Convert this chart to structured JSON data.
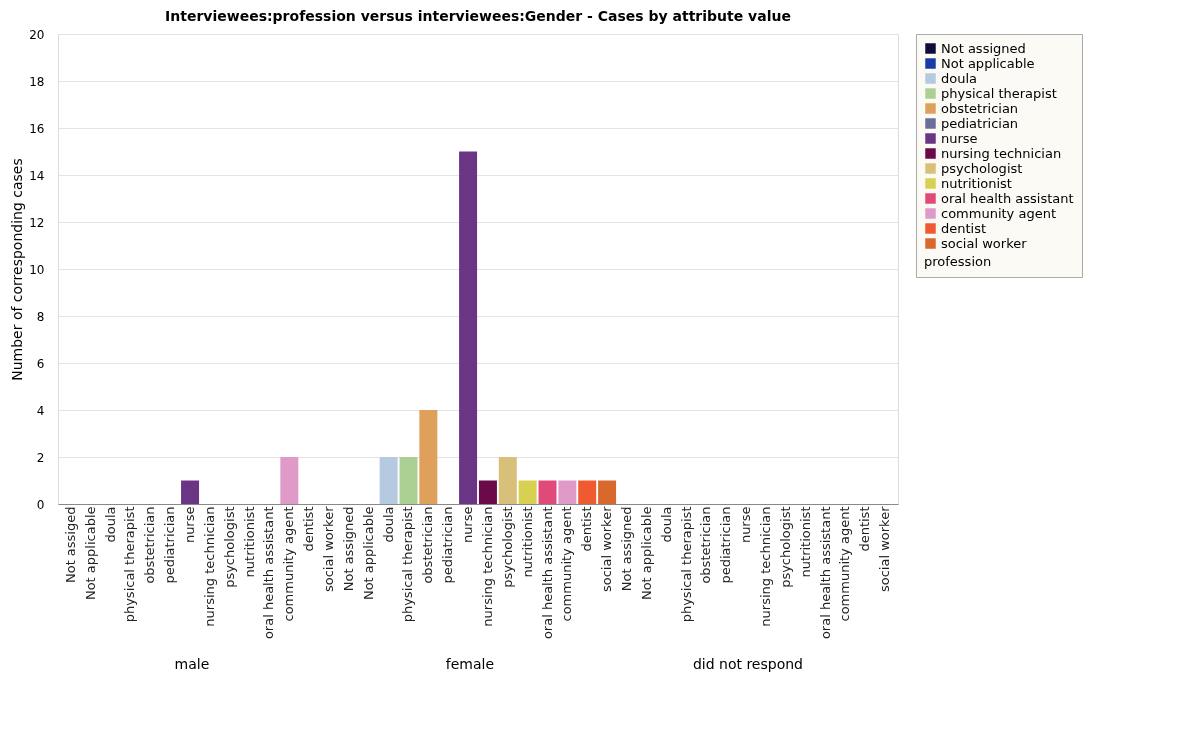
{
  "chart_data": {
    "type": "bar",
    "title": "Interviewees:profession versus interviewees:Gender - Cases by attribute value",
    "ylabel": "Number of corresponding cases",
    "legend_title": "profession",
    "legend": "right",
    "grid": "y",
    "ylim": [
      0,
      20
    ],
    "yticks": [
      0,
      2,
      4,
      6,
      8,
      10,
      12,
      14,
      16,
      18,
      20
    ],
    "annotations": [
      "male",
      "female",
      "did not respond"
    ],
    "categories": [
      "Not assiged",
      "Not applicable",
      "doula",
      "physical therapist",
      "obstetrician",
      "pediatrician",
      "nurse",
      "nursing technician",
      "psychologist",
      "nutritionist",
      "oral health assistant",
      "community agent",
      "dentist",
      "social worker",
      "Not assigned",
      "Not applicable",
      "doula",
      "physical therapist",
      "obstetrician",
      "pediatrician",
      "nurse",
      "nursing technician",
      "psychologist",
      "nutritionist",
      "oral health assistant",
      "community agent",
      "dentist",
      "social worker",
      "Not assigned",
      "Not applicable",
      "doula",
      "physical therapist",
      "obstetrician",
      "pediatrician",
      "nurse",
      "nursing technician",
      "psychologist",
      "nutritionist",
      "oral health assistant",
      "community agent",
      "dentist",
      "social worker"
    ],
    "series": [
      {
        "name": "Not assigned",
        "color": "#0d0c3a",
        "values": [
          0,
          null,
          null,
          null,
          null,
          null,
          null,
          null,
          null,
          null,
          null,
          null,
          null,
          null,
          0,
          null,
          null,
          null,
          null,
          null,
          null,
          null,
          null,
          null,
          null,
          null,
          null,
          null,
          0,
          null,
          null,
          null,
          null,
          null,
          null,
          null,
          null,
          null,
          null,
          null,
          null,
          null
        ]
      },
      {
        "name": "Not applicable",
        "color": "#1a3aa8",
        "values": [
          null,
          0,
          null,
          null,
          null,
          null,
          null,
          null,
          null,
          null,
          null,
          null,
          null,
          null,
          null,
          0,
          null,
          null,
          null,
          null,
          null,
          null,
          null,
          null,
          null,
          null,
          null,
          null,
          null,
          0,
          null,
          null,
          null,
          null,
          null,
          null,
          null,
          null,
          null,
          null,
          null,
          null
        ]
      },
      {
        "name": "doula",
        "color": "#b5c9e0",
        "values": [
          null,
          null,
          0,
          null,
          null,
          null,
          null,
          null,
          null,
          null,
          null,
          null,
          null,
          null,
          null,
          null,
          2,
          null,
          null,
          null,
          null,
          null,
          null,
          null,
          null,
          null,
          null,
          null,
          null,
          null,
          0,
          null,
          null,
          null,
          null,
          null,
          null,
          null,
          null,
          null,
          null,
          null
        ]
      },
      {
        "name": "physical therapist",
        "color": "#acd094",
        "values": [
          null,
          null,
          null,
          0,
          null,
          null,
          null,
          null,
          null,
          null,
          null,
          null,
          null,
          null,
          null,
          null,
          null,
          2,
          null,
          null,
          null,
          null,
          null,
          null,
          null,
          null,
          null,
          null,
          null,
          null,
          null,
          0,
          null,
          null,
          null,
          null,
          null,
          null,
          null,
          null,
          null,
          null
        ]
      },
      {
        "name": "obstetrician",
        "color": "#dea05a",
        "values": [
          null,
          null,
          null,
          null,
          0,
          null,
          null,
          null,
          null,
          null,
          null,
          null,
          null,
          null,
          null,
          null,
          null,
          null,
          4,
          null,
          null,
          null,
          null,
          null,
          null,
          null,
          null,
          null,
          null,
          null,
          null,
          null,
          0,
          null,
          null,
          null,
          null,
          null,
          null,
          null,
          null,
          null
        ]
      },
      {
        "name": "pediatrician",
        "color": "#6a6e98",
        "values": [
          null,
          null,
          null,
          null,
          null,
          0,
          null,
          null,
          null,
          null,
          null,
          null,
          null,
          null,
          null,
          null,
          null,
          null,
          null,
          0,
          null,
          null,
          null,
          null,
          null,
          null,
          null,
          null,
          null,
          null,
          null,
          null,
          null,
          0,
          null,
          null,
          null,
          null,
          null,
          null,
          null,
          null
        ]
      },
      {
        "name": "nurse",
        "color": "#6a3585",
        "values": [
          null,
          null,
          null,
          null,
          null,
          null,
          1,
          null,
          null,
          null,
          null,
          null,
          null,
          null,
          null,
          null,
          null,
          null,
          null,
          null,
          15,
          null,
          null,
          null,
          null,
          null,
          null,
          null,
          null,
          null,
          null,
          null,
          null,
          null,
          0,
          null,
          null,
          null,
          null,
          null,
          null,
          null
        ]
      },
      {
        "name": "nursing technician",
        "color": "#6a0a48",
        "values": [
          null,
          null,
          null,
          null,
          null,
          null,
          null,
          0,
          null,
          null,
          null,
          null,
          null,
          null,
          null,
          null,
          null,
          null,
          null,
          null,
          null,
          1,
          null,
          null,
          null,
          null,
          null,
          null,
          null,
          null,
          null,
          null,
          null,
          null,
          null,
          0,
          null,
          null,
          null,
          null,
          null,
          null
        ]
      },
      {
        "name": "psychologist",
        "color": "#d8c07a",
        "values": [
          null,
          null,
          null,
          null,
          null,
          null,
          null,
          null,
          0,
          null,
          null,
          null,
          null,
          null,
          null,
          null,
          null,
          null,
          null,
          null,
          null,
          null,
          2,
          null,
          null,
          null,
          null,
          null,
          null,
          null,
          null,
          null,
          null,
          null,
          null,
          null,
          0,
          null,
          null,
          null,
          null,
          null
        ]
      },
      {
        "name": "nutritionist",
        "color": "#d8d050",
        "values": [
          null,
          null,
          null,
          null,
          null,
          null,
          null,
          null,
          null,
          0,
          null,
          null,
          null,
          null,
          null,
          null,
          null,
          null,
          null,
          null,
          null,
          null,
          null,
          1,
          null,
          null,
          null,
          null,
          null,
          null,
          null,
          null,
          null,
          null,
          null,
          null,
          null,
          0,
          null,
          null,
          null,
          null
        ]
      },
      {
        "name": "oral health assistant",
        "color": "#e04a78",
        "values": [
          null,
          null,
          null,
          null,
          null,
          null,
          null,
          null,
          null,
          null,
          0,
          null,
          null,
          null,
          null,
          null,
          null,
          null,
          null,
          null,
          null,
          null,
          null,
          null,
          1,
          null,
          null,
          null,
          null,
          null,
          null,
          null,
          null,
          null,
          null,
          null,
          null,
          null,
          0,
          null,
          null,
          null
        ]
      },
      {
        "name": "community agent",
        "color": "#e09ac8",
        "values": [
          null,
          null,
          null,
          null,
          null,
          null,
          null,
          null,
          null,
          null,
          null,
          2,
          null,
          null,
          null,
          null,
          null,
          null,
          null,
          null,
          null,
          null,
          null,
          null,
          null,
          1,
          null,
          null,
          null,
          null,
          null,
          null,
          null,
          null,
          null,
          null,
          null,
          null,
          null,
          0,
          null,
          null
        ]
      },
      {
        "name": "dentist",
        "color": "#f05a30",
        "values": [
          null,
          null,
          null,
          null,
          null,
          null,
          null,
          null,
          null,
          null,
          null,
          null,
          0,
          null,
          null,
          null,
          null,
          null,
          null,
          null,
          null,
          null,
          null,
          null,
          null,
          null,
          1,
          null,
          null,
          null,
          null,
          null,
          null,
          null,
          null,
          null,
          null,
          null,
          null,
          null,
          0,
          null
        ]
      },
      {
        "name": "social worker",
        "color": "#d8682c",
        "values": [
          null,
          null,
          null,
          null,
          null,
          null,
          null,
          null,
          null,
          null,
          null,
          null,
          null,
          0,
          null,
          null,
          null,
          null,
          null,
          null,
          null,
          null,
          null,
          null,
          null,
          null,
          null,
          1,
          null,
          null,
          null,
          null,
          null,
          null,
          null,
          null,
          null,
          null,
          null,
          null,
          null,
          0
        ]
      }
    ]
  }
}
